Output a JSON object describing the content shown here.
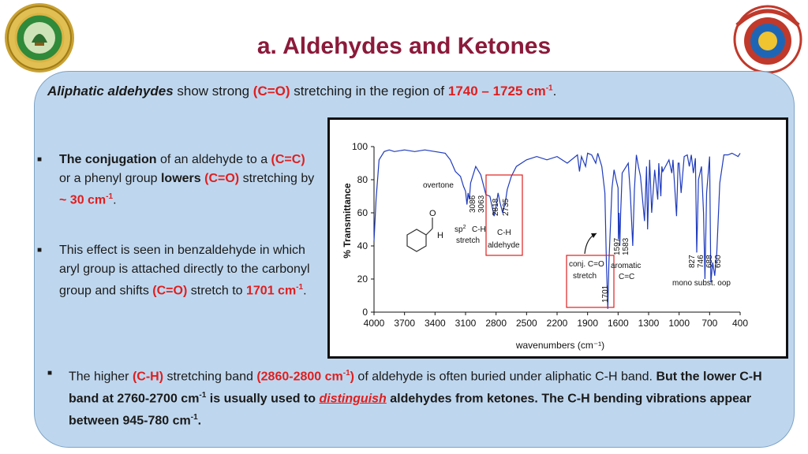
{
  "title": "a.  Aldehydes and Ketones",
  "intro": {
    "lead": "Aliphatic aldehydes",
    "t1": " show strong ",
    "co": "(C=O)",
    "t2": " stretching in the region of ",
    "range": "1740 – 1725 cm",
    "sup": "-1",
    "end": "."
  },
  "bullet1": {
    "b1": "The conjugation",
    "t1": " of an aldehyde to a ",
    "cc": "(C=C)",
    "t2": " or a phenyl group ",
    "lowers": "lowers",
    "t3": " ",
    "co": "(C=O)",
    "t4": " stretching by ",
    "approx": "~ 30 cm",
    "sup": "-1",
    "end": "."
  },
  "bullet2": {
    "t1": "This effect is seen in benzaldehyde in which aryl group is attached directly to the carbonyl group and shifts ",
    "co": "(C=O)",
    "t2": " stretch to ",
    "val": "1701 cm",
    "sup": "-1",
    "end": "."
  },
  "bullet3": {
    "t1": "The higher ",
    "ch": "(C-H)",
    "t2": " stretching band ",
    "band": "(2860-2800 cm",
    "band_sup": "-1",
    "band_end": ")",
    "t3": " of aldehyde is often buried under aliphatic C-H band. ",
    "b1": "But the lower C-H band at 2760-2700 cm",
    "b1_sup": "-1",
    "b2": " is usually used to ",
    "link": "distinguish",
    "b3": " aldehydes from ketones. The C-H bending vibrations appear between 945-780 cm",
    "b3_sup": "-1",
    "b4": "."
  },
  "chart_data": {
    "type": "line",
    "xlabel": "wavenumbers (cm⁻¹)",
    "ylabel": "% Transmittance",
    "xlim": [
      4000,
      400
    ],
    "ylim": [
      0,
      100
    ],
    "xticks": [
      4000,
      3700,
      3400,
      3100,
      2800,
      2500,
      2200,
      1900,
      1600,
      1300,
      1000,
      700,
      400
    ],
    "yticks": [
      0,
      20,
      40,
      60,
      80,
      100
    ],
    "grid": false,
    "x": [
      4000,
      3980,
      3950,
      3900,
      3850,
      3800,
      3700,
      3600,
      3500,
      3400,
      3300,
      3250,
      3200,
      3150,
      3120,
      3100,
      3086,
      3075,
      3063,
      3050,
      3000,
      2950,
      2900,
      2860,
      2840,
      2818,
      2800,
      2780,
      2760,
      2735,
      2710,
      2690,
      2650,
      2600,
      2500,
      2400,
      2300,
      2200,
      2100,
      2000,
      1980,
      1960,
      1920,
      1900,
      1860,
      1820,
      1800,
      1760,
      1730,
      1715,
      1701,
      1690,
      1660,
      1640,
      1620,
      1600,
      1597,
      1590,
      1583,
      1575,
      1560,
      1500,
      1480,
      1456,
      1440,
      1420,
      1400,
      1380,
      1340,
      1320,
      1310,
      1290,
      1270,
      1240,
      1210,
      1200,
      1180,
      1170,
      1160,
      1100,
      1072,
      1060,
      1025,
      1010,
      1000,
      980,
      950,
      920,
      900,
      880,
      860,
      840,
      827,
      810,
      780,
      760,
      746,
      730,
      700,
      688,
      670,
      650,
      630,
      600,
      560,
      520,
      480,
      450,
      420,
      400
    ],
    "y": [
      43,
      68,
      92,
      97,
      98,
      97,
      98,
      97,
      98,
      97,
      96,
      92,
      85,
      82,
      76,
      73,
      65,
      72,
      68,
      78,
      88,
      83,
      71,
      70,
      64,
      58,
      64,
      72,
      66,
      60,
      66,
      74,
      82,
      88,
      92,
      94,
      92,
      94,
      90,
      95,
      85,
      94,
      88,
      96,
      95,
      90,
      96,
      88,
      72,
      30,
      2,
      30,
      75,
      86,
      80,
      75,
      44,
      60,
      40,
      60,
      84,
      90,
      72,
      40,
      74,
      95,
      88,
      82,
      55,
      88,
      50,
      92,
      60,
      86,
      68,
      90,
      70,
      88,
      85,
      92,
      84,
      92,
      58,
      90,
      90,
      72,
      94,
      95,
      88,
      95,
      84,
      93,
      36,
      80,
      88,
      60,
      20,
      72,
      94,
      18,
      30,
      22,
      36,
      78,
      95,
      95,
      96,
      95,
      94,
      96
    ],
    "annotations": {
      "overtone": "overtone",
      "sp2_peaks": [
        "3086",
        "3063"
      ],
      "sp2_label": "C-H",
      "sp2_stretch": "stretch",
      "sp2_prefix": "sp",
      "sp2_sup": "2",
      "ald_peaks": [
        "2818",
        "2735"
      ],
      "ald_label": "C-H",
      "ald_sub": "aldehyde",
      "conj_line1": "conj. C=O",
      "conj_line2": "stretch",
      "conj_peak": "1701",
      "arom_peaks": [
        "1597",
        "1583"
      ],
      "arom_label": "aromatic",
      "arom_sub": "C=C",
      "oop_peaks": [
        "827",
        "746",
        "688",
        "650"
      ],
      "oop_label": "mono subst. oop",
      "mol_o": "O",
      "mol_h": "H"
    }
  },
  "colors": {
    "title": "#8b1a3a",
    "accent_red": "#e01e1e",
    "panel": "#bfd7ee",
    "spectrum": "#1f3bbd"
  }
}
